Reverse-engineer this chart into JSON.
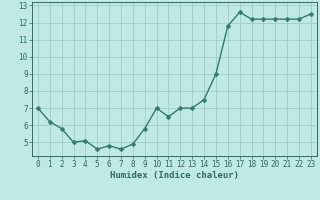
{
  "x": [
    0,
    1,
    2,
    3,
    4,
    5,
    6,
    7,
    8,
    9,
    10,
    11,
    12,
    13,
    14,
    15,
    16,
    17,
    18,
    19,
    20,
    21,
    22,
    23
  ],
  "y": [
    7.0,
    6.2,
    5.8,
    5.0,
    5.1,
    4.6,
    4.8,
    4.6,
    4.9,
    5.8,
    7.0,
    6.5,
    7.0,
    7.0,
    7.5,
    9.0,
    11.8,
    12.6,
    12.2,
    12.2,
    12.2,
    12.2,
    12.2,
    12.5
  ],
  "line_color": "#2e7d6e",
  "marker": "D",
  "marker_size": 2.5,
  "bg_color": "#c0e8e4",
  "grid_color": "#a0ccc8",
  "xlabel": "Humidex (Indice chaleur)",
  "ylim": [
    4.2,
    13.2
  ],
  "xlim": [
    -0.5,
    23.5
  ],
  "yticks": [
    5,
    6,
    7,
    8,
    9,
    10,
    11,
    12,
    13
  ],
  "xticks": [
    0,
    1,
    2,
    3,
    4,
    5,
    6,
    7,
    8,
    9,
    10,
    11,
    12,
    13,
    14,
    15,
    16,
    17,
    18,
    19,
    20,
    21,
    22,
    23
  ],
  "tick_fontsize": 5.5,
  "label_fontsize": 6.5,
  "line_width": 1.0,
  "axis_color": "#2e6b60"
}
